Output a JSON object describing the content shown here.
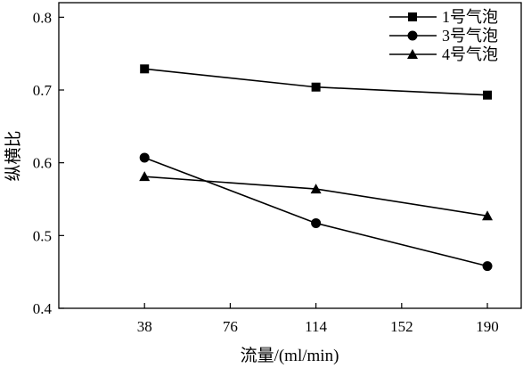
{
  "chart_data": {
    "type": "line",
    "xlabel": "流量/(ml/min)",
    "ylabel": "纵横比",
    "x_ticks": [
      "38",
      "76",
      "114",
      "152",
      "190"
    ],
    "y_ticks": [
      "0.4",
      "0.5",
      "0.6",
      "0.7",
      "0.8"
    ],
    "xlim": [
      0,
      205
    ],
    "ylim": [
      0.4,
      0.82
    ],
    "grid": false,
    "legend_position": "top-right",
    "x": [
      38,
      114,
      190
    ],
    "series": [
      {
        "name": "1号气泡",
        "marker": "square",
        "values": [
          0.729,
          0.704,
          0.693
        ]
      },
      {
        "name": "3号气泡",
        "marker": "circle",
        "values": [
          0.607,
          0.517,
          0.458
        ]
      },
      {
        "name": "4号气泡",
        "marker": "triangle",
        "values": [
          0.581,
          0.564,
          0.527
        ]
      }
    ],
    "colors": {
      "line": "#000000",
      "background": "#ffffff"
    }
  }
}
